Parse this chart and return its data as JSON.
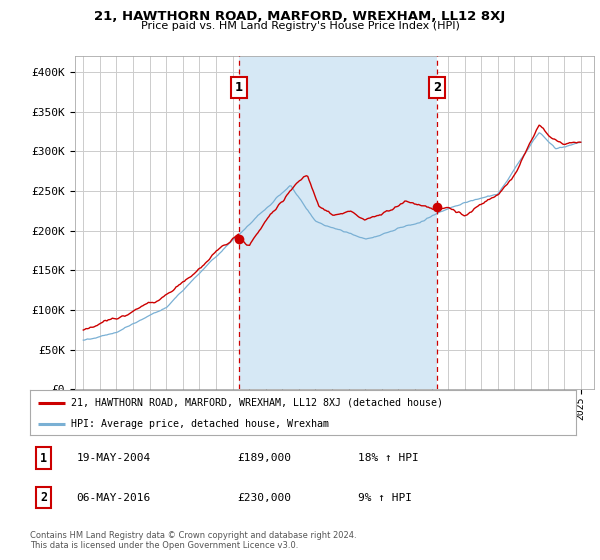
{
  "title1": "21, HAWTHORN ROAD, MARFORD, WREXHAM, LL12 8XJ",
  "title2": "Price paid vs. HM Land Registry's House Price Index (HPI)",
  "legend_line1": "21, HAWTHORN ROAD, MARFORD, WREXHAM, LL12 8XJ (detached house)",
  "legend_line2": "HPI: Average price, detached house, Wrexham",
  "annotation1_date": "19-MAY-2004",
  "annotation1_price": "£189,000",
  "annotation1_hpi": "18% ↑ HPI",
  "annotation2_date": "06-MAY-2016",
  "annotation2_price": "£230,000",
  "annotation2_hpi": "9% ↑ HPI",
  "footnote": "Contains HM Land Registry data © Crown copyright and database right 2024.\nThis data is licensed under the Open Government Licence v3.0.",
  "property_color": "#cc0000",
  "hpi_color": "#7ab0d4",
  "vline_color": "#cc0000",
  "shade_color": "#d6e8f5",
  "ylim": [
    0,
    420000
  ],
  "yticks": [
    0,
    50000,
    100000,
    150000,
    200000,
    250000,
    300000,
    350000,
    400000
  ],
  "ytick_labels": [
    "£0",
    "£50K",
    "£100K",
    "£150K",
    "£200K",
    "£250K",
    "£300K",
    "£350K",
    "£400K"
  ],
  "sale1_x": 2004.38,
  "sale1_y": 189000,
  "sale2_x": 2016.35,
  "sale2_y": 230000,
  "xlim_left": 1994.5,
  "xlim_right": 2025.8,
  "background_color": "#ffffff",
  "grid_color": "#cccccc"
}
